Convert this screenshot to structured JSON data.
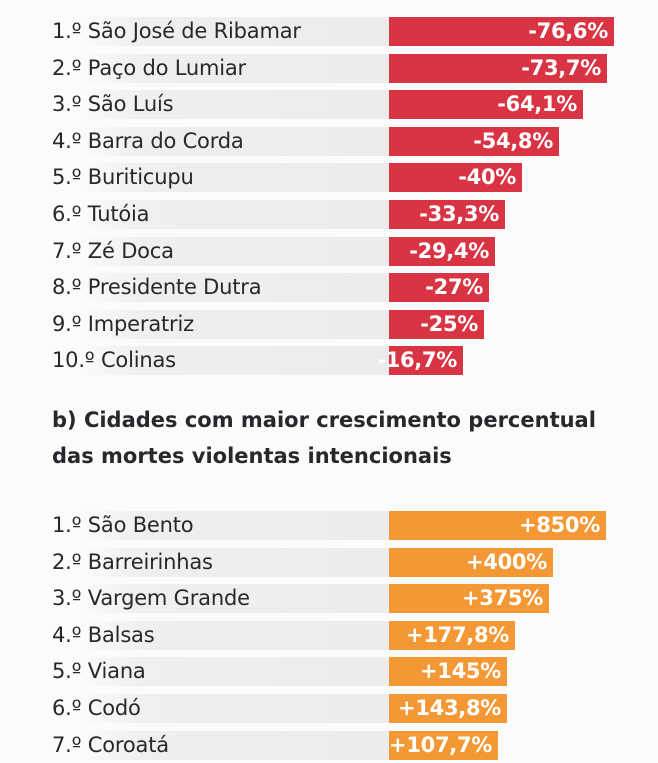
{
  "chart_data": [
    {
      "type": "bar",
      "orientation": "horizontal",
      "title": "",
      "categories": [
        "1.º São José de Ribamar",
        "2.º Paço do Lumiar",
        "3.º São Luís",
        "4.º Barra do Corda",
        "5.º Buriticupu",
        "6.º Tutóia",
        "7.º Zé Doca",
        "8.º Presidente Dutra",
        "9.º Imperatriz",
        "10.º Colinas"
      ],
      "values": [
        -76.6,
        -73.7,
        -64.1,
        -54.8,
        -40,
        -33.3,
        -29.4,
        -27,
        -25,
        -16.7
      ],
      "labels": [
        "-76,6%",
        "-73,7%",
        "-64,1%",
        "-54,8%",
        "-40%",
        "-33,3%",
        "-29,4%",
        "-27%",
        "-25%",
        "-16,7%"
      ],
      "color": "#d93444",
      "unit": "%"
    },
    {
      "type": "bar",
      "orientation": "horizontal",
      "title": "b) Cidades com maior crescimento percentual das mortes violentas intencionais",
      "categories": [
        "1.º São Bento",
        "2.º Barreirinhas",
        "3.º Vargem Grande",
        "4.º Balsas",
        "5.º Viana",
        "6.º Codó",
        "7.º Coroatá"
      ],
      "values": [
        850,
        400,
        375,
        177.8,
        145,
        143.8,
        107.7
      ],
      "labels": [
        "+850%",
        "+400%",
        "+375%",
        "+177,8%",
        "+145%",
        "+143,8%",
        "+107,7%"
      ],
      "color": "#f39834",
      "unit": "%"
    }
  ]
}
